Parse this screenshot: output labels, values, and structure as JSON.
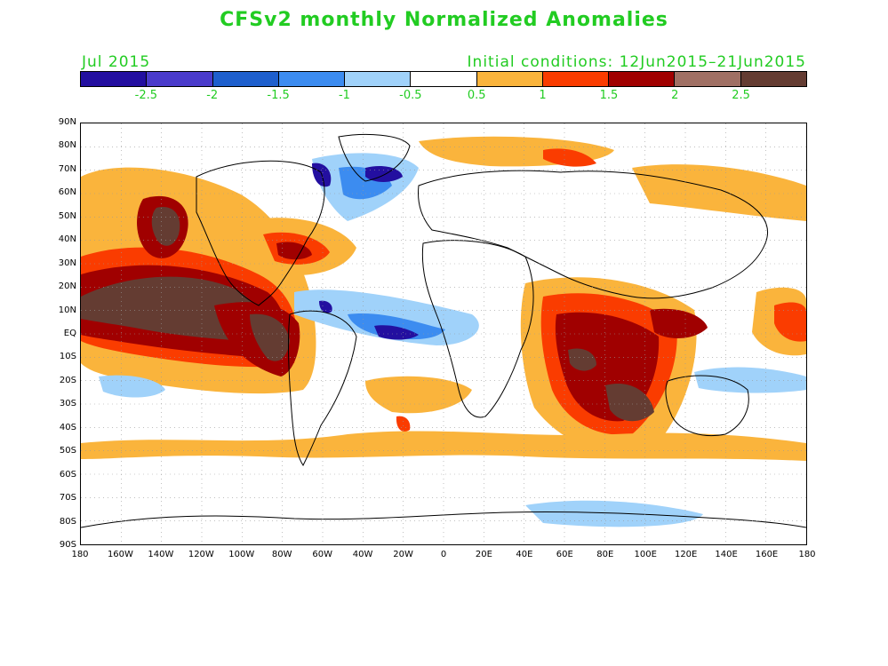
{
  "title": "CFSv2 monthly Normalized Anomalies",
  "valid_month": "Jul 2015",
  "initial_conditions": "Initial conditions: 12Jun2015–21Jun2015",
  "colorbar": {
    "colors": [
      "#230fa0",
      "#4a3bcb",
      "#1e5fcd",
      "#3c8cf0",
      "#a0d2fa",
      "#ffffff",
      "#fab43c",
      "#fa3c00",
      "#a00000",
      "#a07064",
      "#643c32"
    ],
    "labels": [
      "-2.5",
      "-2",
      "-1.5",
      "-1",
      "-0.5",
      "0.5",
      "1",
      "1.5",
      "2",
      "2.5"
    ]
  },
  "axes": {
    "lat_labels": [
      "90N",
      "80N",
      "70N",
      "60N",
      "50N",
      "40N",
      "30N",
      "20N",
      "10N",
      "EQ",
      "10S",
      "20S",
      "30S",
      "40S",
      "50S",
      "60S",
      "70S",
      "80S",
      "90S"
    ],
    "lon_labels": [
      "180",
      "160W",
      "140W",
      "120W",
      "100W",
      "80W",
      "60W",
      "40W",
      "20W",
      "0",
      "20E",
      "40E",
      "60E",
      "80E",
      "100E",
      "120E",
      "140E",
      "160E",
      "180"
    ]
  }
}
